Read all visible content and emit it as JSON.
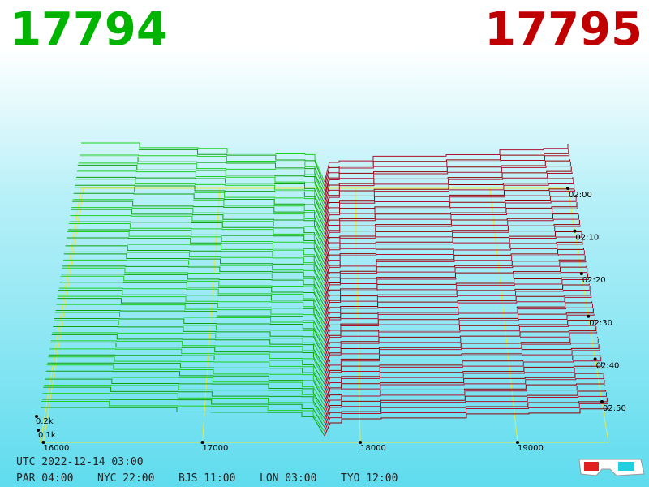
{
  "header": {
    "bid": "17794",
    "ask": "17795"
  },
  "price_axis": [
    "16000",
    "17000",
    "18000",
    "19000"
  ],
  "volume_axis": [
    "0.2k",
    "0.1k"
  ],
  "time_axis": [
    "02:00",
    "02:10",
    "02:20",
    "02:30",
    "02:40",
    "02:50"
  ],
  "footer": {
    "utc": "UTC 2022-12-14 03:00",
    "clocks": [
      "PAR 04:00",
      "NYC 22:00",
      "BJS 11:00",
      "LON 03:00",
      "TYO 12:00"
    ]
  }
}
